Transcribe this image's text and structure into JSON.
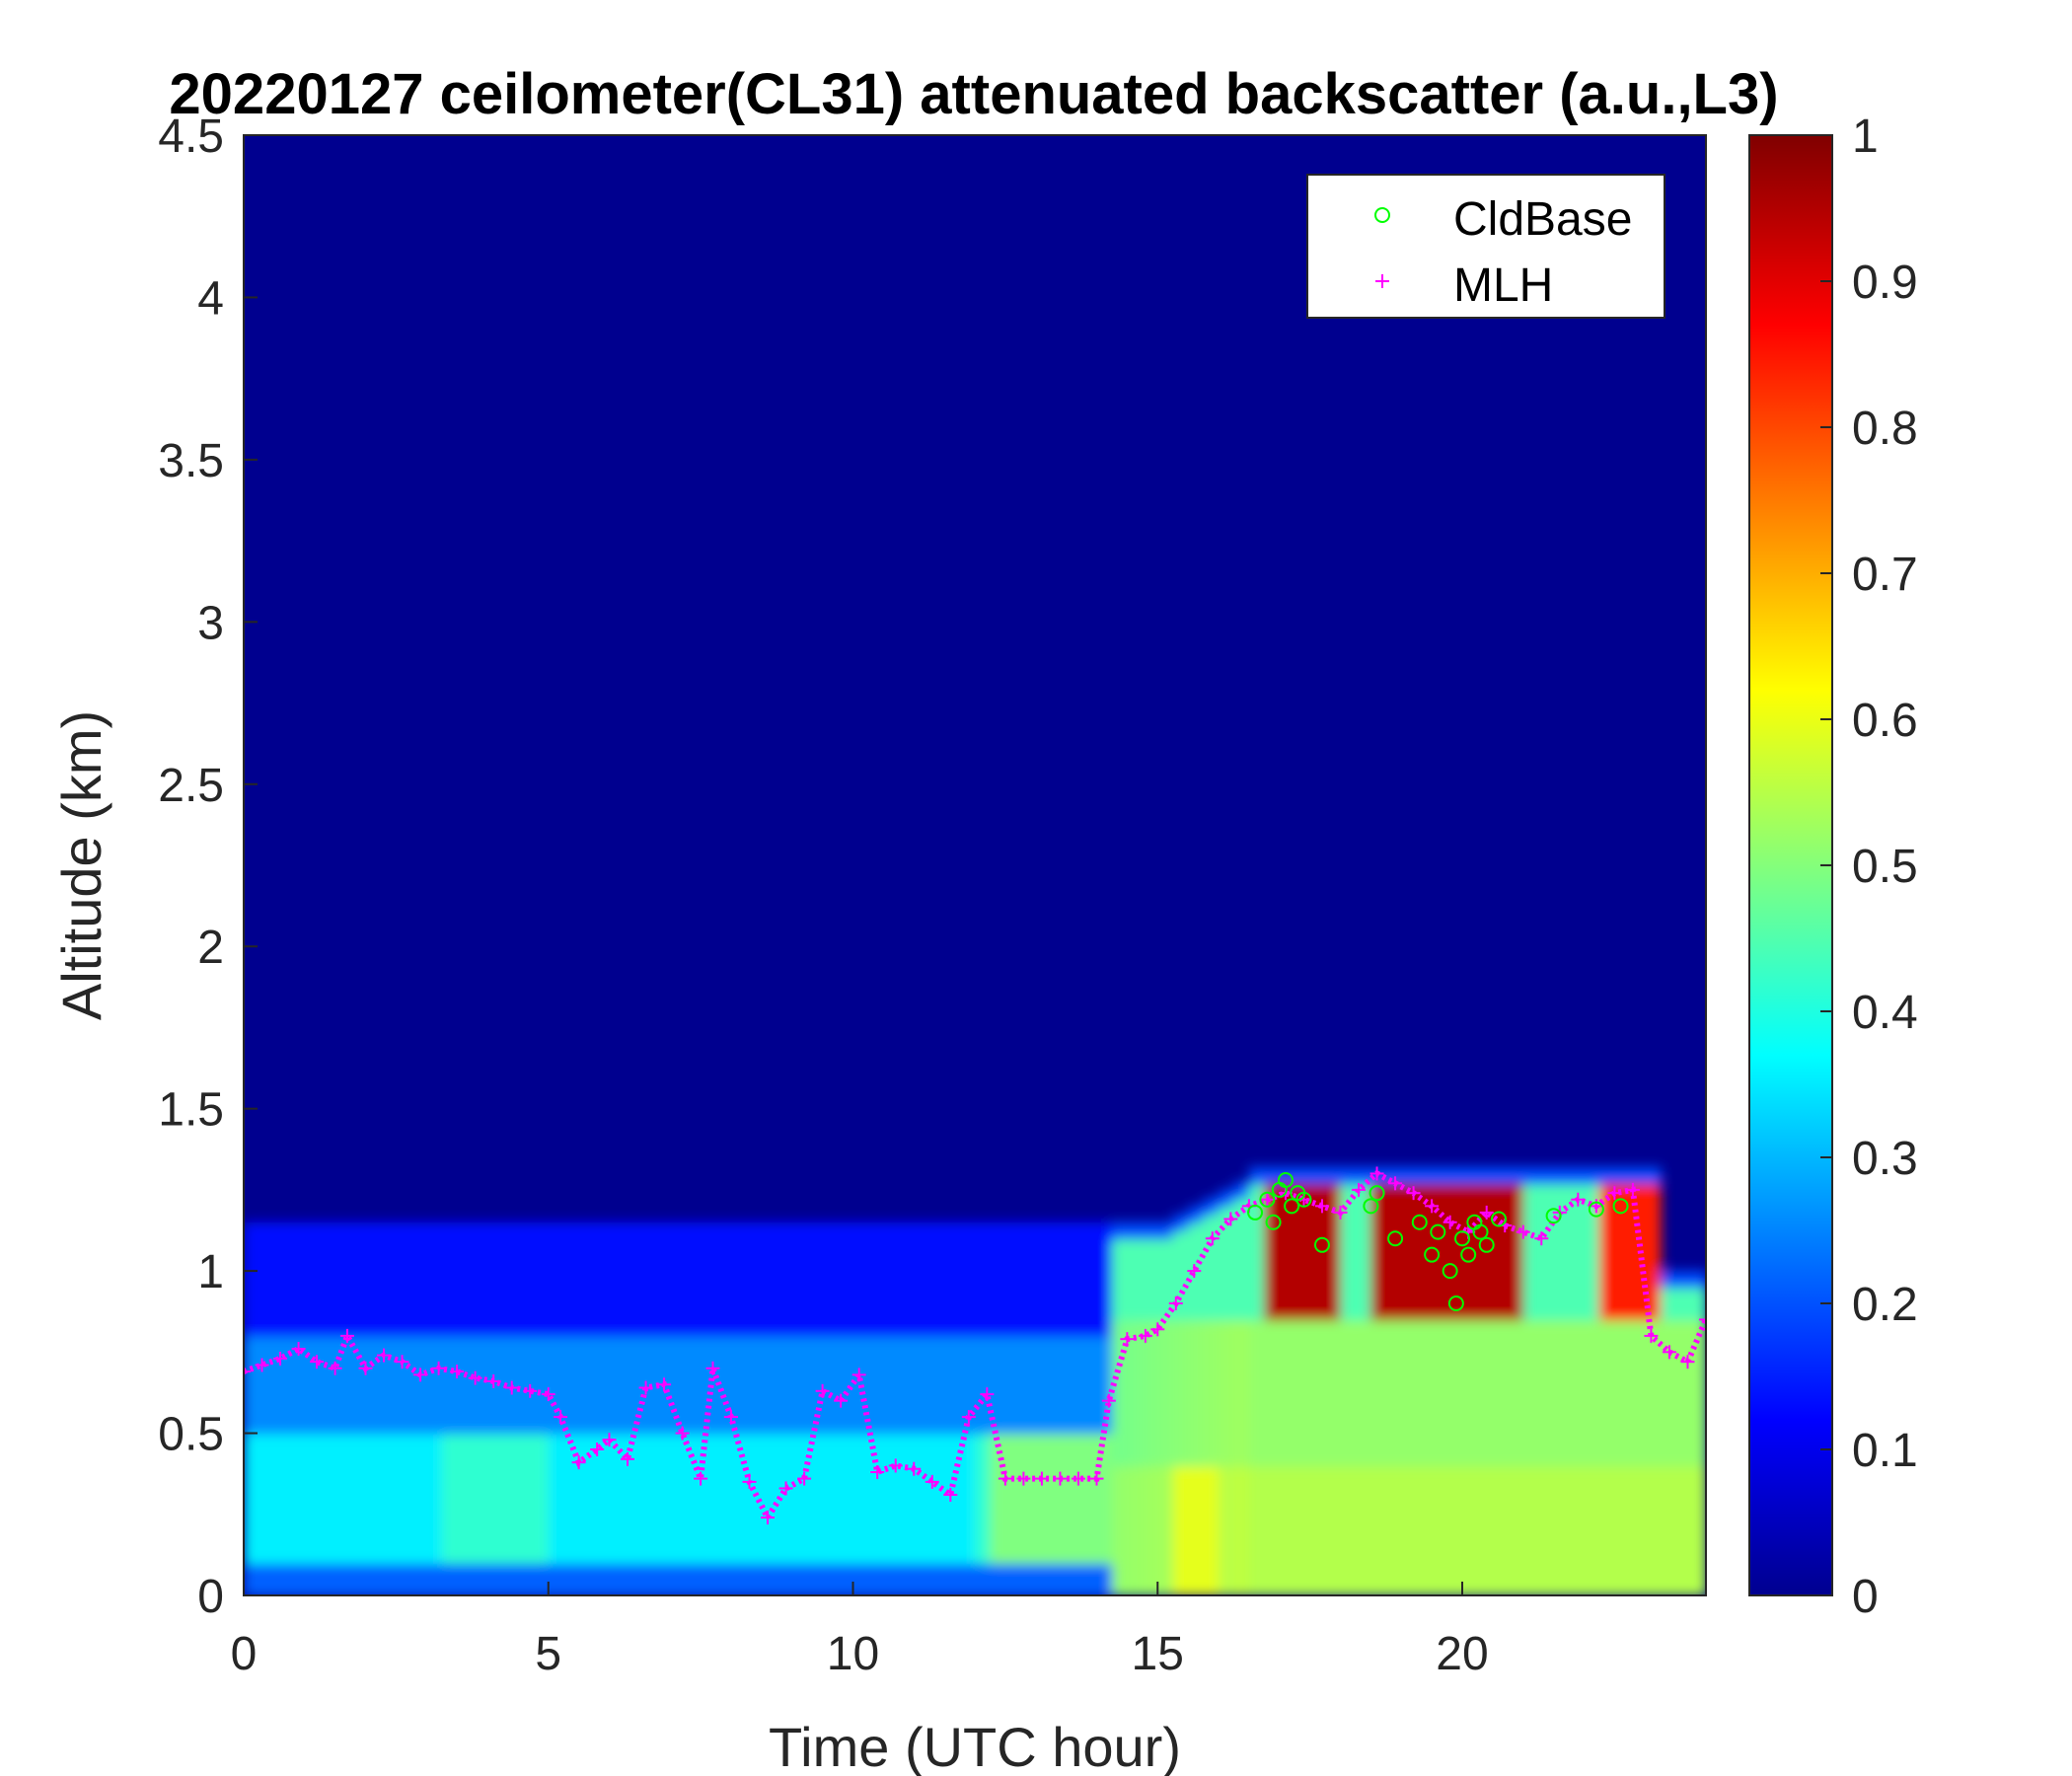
{
  "chart_data": {
    "type": "heatmap",
    "title": "20220127 ceilometer(CL31) attenuated backscatter (a.u.,L3)",
    "xlabel": "Time (UTC hour)",
    "ylabel": "Altitude (km)",
    "xlim": [
      0,
      24
    ],
    "ylim": [
      0,
      4.5
    ],
    "clim": [
      0,
      1
    ],
    "x_ticks": [
      "0",
      "5",
      "10",
      "15",
      "20"
    ],
    "y_ticks": [
      "0",
      "0.5",
      "1",
      "1.5",
      "2",
      "2.5",
      "3",
      "3.5",
      "4",
      "4.5"
    ],
    "colorbar_ticks": [
      "0",
      "0.1",
      "0.2",
      "0.3",
      "0.4",
      "0.5",
      "0.6",
      "0.7",
      "0.8",
      "0.9",
      "1"
    ],
    "colormap": "jet",
    "legend_position": "top-right",
    "legend": [
      {
        "name": "CldBase",
        "marker": "circle",
        "color": "#00ff00"
      },
      {
        "name": "MLH",
        "marker": "plus",
        "color": "#ff00ff"
      }
    ],
    "series": [
      {
        "name": "MLH",
        "x": [
          0.0,
          0.3,
          0.6,
          0.9,
          1.2,
          1.5,
          1.7,
          2.0,
          2.3,
          2.6,
          2.9,
          3.2,
          3.5,
          3.8,
          4.1,
          4.4,
          4.7,
          5.0,
          5.2,
          5.5,
          5.8,
          6.0,
          6.3,
          6.6,
          6.9,
          7.2,
          7.5,
          7.7,
          8.0,
          8.3,
          8.6,
          8.9,
          9.2,
          9.5,
          9.8,
          10.1,
          10.4,
          10.7,
          11.0,
          11.3,
          11.6,
          11.9,
          12.2,
          12.5,
          12.8,
          13.1,
          13.4,
          13.7,
          14.0,
          14.2,
          14.5,
          14.8,
          15.0,
          15.3,
          15.6,
          15.9,
          16.2,
          16.5,
          16.8,
          17.1,
          17.4,
          17.7,
          18.0,
          18.3,
          18.6,
          18.9,
          19.2,
          19.5,
          19.8,
          20.1,
          20.4,
          20.7,
          21.0,
          21.3,
          21.6,
          21.9,
          22.2,
          22.5,
          22.8,
          23.1,
          23.4,
          23.7,
          24.0
        ],
        "values": [
          0.69,
          0.71,
          0.73,
          0.76,
          0.72,
          0.7,
          0.8,
          0.7,
          0.74,
          0.72,
          0.68,
          0.7,
          0.69,
          0.67,
          0.66,
          0.64,
          0.63,
          0.62,
          0.55,
          0.41,
          0.45,
          0.48,
          0.42,
          0.64,
          0.65,
          0.5,
          0.36,
          0.7,
          0.55,
          0.35,
          0.24,
          0.33,
          0.36,
          0.63,
          0.6,
          0.68,
          0.38,
          0.4,
          0.39,
          0.35,
          0.31,
          0.55,
          0.62,
          0.36,
          0.36,
          0.36,
          0.36,
          0.36,
          0.36,
          0.6,
          0.79,
          0.8,
          0.82,
          0.9,
          1.0,
          1.1,
          1.16,
          1.2,
          1.22,
          1.24,
          1.22,
          1.2,
          1.18,
          1.25,
          1.3,
          1.27,
          1.24,
          1.2,
          1.15,
          1.12,
          1.18,
          1.14,
          1.12,
          1.1,
          1.18,
          1.22,
          1.2,
          1.24,
          1.25,
          0.8,
          0.75,
          0.72,
          0.85
        ]
      },
      {
        "name": "CldBase",
        "x": [
          16.6,
          16.8,
          16.9,
          17.0,
          17.1,
          17.2,
          17.3,
          17.4,
          17.7,
          18.5,
          18.6,
          18.9,
          19.3,
          19.5,
          19.6,
          19.8,
          19.9,
          20.0,
          20.1,
          20.2,
          20.3,
          20.4,
          20.6,
          21.5,
          22.2,
          22.6
        ],
        "values": [
          1.18,
          1.22,
          1.15,
          1.25,
          1.28,
          1.2,
          1.24,
          1.22,
          1.08,
          1.2,
          1.24,
          1.1,
          1.15,
          1.05,
          1.12,
          1.0,
          0.9,
          1.1,
          1.05,
          1.15,
          1.12,
          1.08,
          1.16,
          1.17,
          1.19,
          1.2
        ]
      }
    ]
  }
}
